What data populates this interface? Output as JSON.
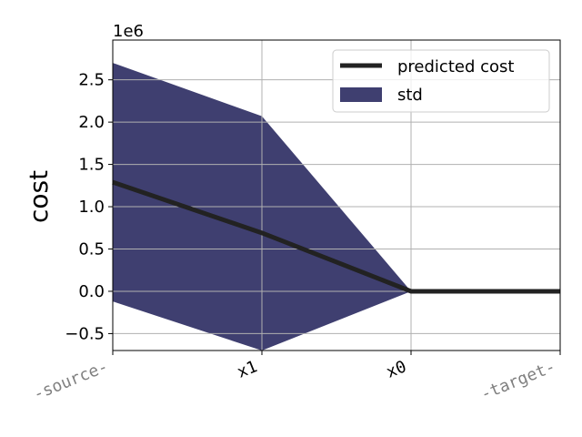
{
  "chart_data": {
    "type": "line",
    "ylabel": "cost",
    "y_offset_label": "1e6",
    "categories": [
      "-source-",
      "x1",
      "x0",
      "-target-"
    ],
    "category_colors": [
      "#808080",
      "#000000",
      "#000000",
      "#808080"
    ],
    "series": [
      {
        "name": "predicted cost",
        "color": "#222222",
        "values": [
          1.29,
          0.69,
          0,
          0
        ]
      },
      {
        "name": "std",
        "color": "#3f3f70",
        "upper": [
          2.7,
          2.07,
          0,
          0
        ],
        "lower": [
          -0.12,
          -0.7,
          0,
          0
        ]
      }
    ],
    "ylim": [
      -0.7,
      2.97
    ],
    "yticks": [
      {
        "value": -0.5,
        "label": "−0.5"
      },
      {
        "value": 0,
        "label": "0.0"
      },
      {
        "value": 0.5,
        "label": "0.5"
      },
      {
        "value": 1,
        "label": "1.0"
      },
      {
        "value": 1.5,
        "label": "1.5"
      },
      {
        "value": 2,
        "label": "2.0"
      },
      {
        "value": 2.5,
        "label": "2.5"
      }
    ],
    "grid": true,
    "legend": "upper right"
  }
}
